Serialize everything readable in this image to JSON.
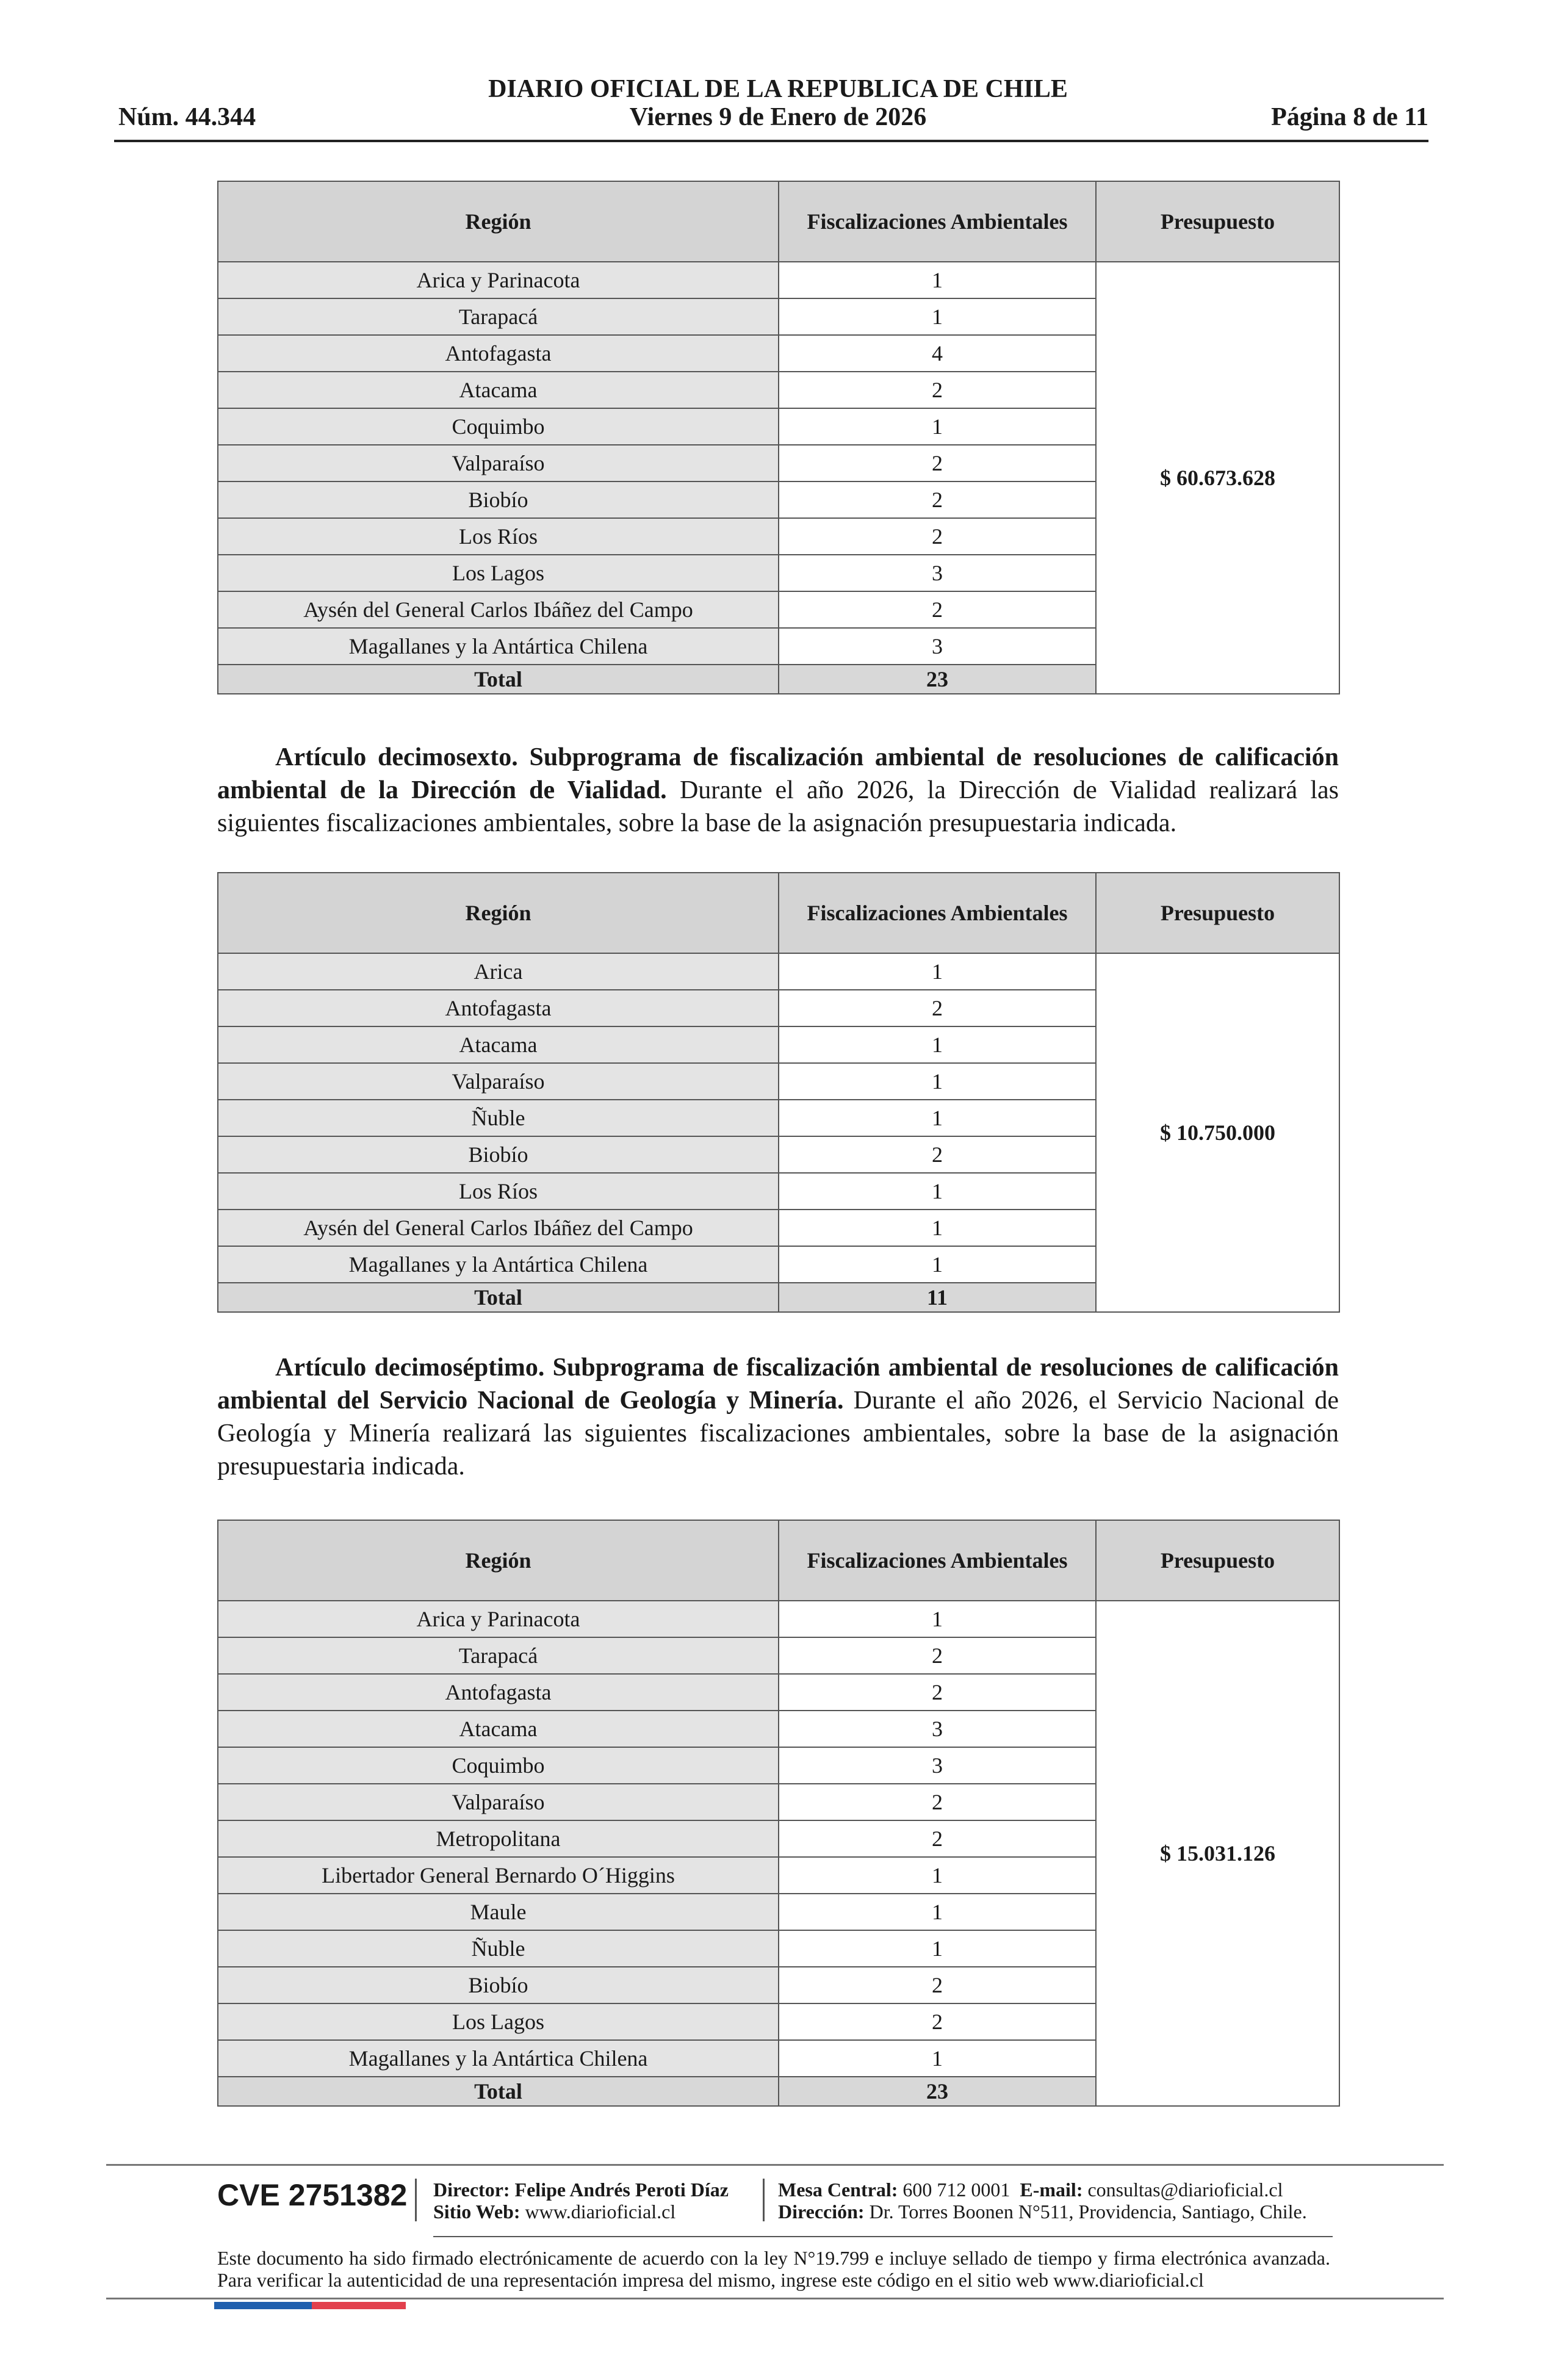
{
  "header": {
    "title": "DIARIO OFICIAL DE LA REPUBLICA DE CHILE",
    "date": "Viernes 9 de Enero de 2026",
    "number": "Núm. 44.344",
    "page": "Página 8 de 11"
  },
  "tables": [
    {
      "columns": [
        "Región",
        "Fiscalizaciones Ambientales",
        "Presupuesto"
      ],
      "rows": [
        [
          "Arica y Parinacota",
          1
        ],
        [
          "Tarapacá",
          1
        ],
        [
          "Antofagasta",
          4
        ],
        [
          "Atacama",
          2
        ],
        [
          "Coquimbo",
          1
        ],
        [
          "Valparaíso",
          2
        ],
        [
          "Biobío",
          2
        ],
        [
          "Los Ríos",
          2
        ],
        [
          "Los Lagos",
          3
        ],
        [
          "Aysén del General Carlos Ibáñez del Campo",
          2
        ],
        [
          "Magallanes y la Antártica Chilena",
          3
        ]
      ],
      "total": [
        "Total",
        23
      ],
      "budget": "$ 60.673.628"
    },
    {
      "columns": [
        "Región",
        "Fiscalizaciones Ambientales",
        "Presupuesto"
      ],
      "rows": [
        [
          "Arica",
          1
        ],
        [
          "Antofagasta",
          2
        ],
        [
          "Atacama",
          1
        ],
        [
          "Valparaíso",
          1
        ],
        [
          "Ñuble",
          1
        ],
        [
          "Biobío",
          2
        ],
        [
          "Los Ríos",
          1
        ],
        [
          "Aysén del General Carlos Ibáñez del Campo",
          1
        ],
        [
          "Magallanes y la Antártica Chilena",
          1
        ]
      ],
      "total": [
        "Total",
        11
      ],
      "budget": "$ 10.750.000"
    },
    {
      "columns": [
        "Región",
        "Fiscalizaciones Ambientales",
        "Presupuesto"
      ],
      "rows": [
        [
          "Arica y Parinacota",
          1
        ],
        [
          "Tarapacá",
          2
        ],
        [
          "Antofagasta",
          2
        ],
        [
          "Atacama",
          3
        ],
        [
          "Coquimbo",
          3
        ],
        [
          "Valparaíso",
          2
        ],
        [
          "Metropolitana",
          2
        ],
        [
          "Libertador General Bernardo O´Higgins",
          1
        ],
        [
          "Maule",
          1
        ],
        [
          "Ñuble",
          1
        ],
        [
          "Biobío",
          2
        ],
        [
          "Los Lagos",
          2
        ],
        [
          "Magallanes y la Antártica Chilena",
          1
        ]
      ],
      "total": [
        "Total",
        23
      ],
      "budget": "$ 15.031.126"
    }
  ],
  "articles": [
    {
      "heading": "Artículo decimosexto. Subprograma de fiscalización ambiental de resoluciones de calificación ambiental de la Dirección de Vialidad.",
      "body": "Durante el año 2026, la Dirección de Vialidad realizará las siguientes fiscalizaciones ambientales, sobre la base de la asignación presupuestaria indicada."
    },
    {
      "heading": "Artículo decimoséptimo. Subprograma de fiscalización ambiental de resoluciones de calificación ambiental del Servicio Nacional de Geología y Minería.",
      "body": "Durante el año 2026, el Servicio Nacional de Geología y Minería realizará las siguientes fiscalizaciones ambientales, sobre la base de la asignación presupuestaria indicada."
    }
  ],
  "footer": {
    "cve": "CVE 2751382",
    "director_label": "Director:",
    "director": "Felipe Andrés Peroti Díaz",
    "web_label": "Sitio Web:",
    "web": "www.diarioficial.cl",
    "phone_label": "Mesa Central:",
    "phone": "600 712 0001",
    "email_label": "E-mail:",
    "email": "consultas@diarioficial.cl",
    "address_label": "Dirección:",
    "address": "Dr. Torres Boonen N°511, Providencia, Santiago, Chile.",
    "disclaimer": "Este documento ha sido firmado electrónicamente de acuerdo con la ley N°19.799 e incluye sellado de tiempo y firma electrónica avanzada. Para verificar la autenticidad de una representación impresa del mismo, ingrese este código en el sitio web www.diarioficial.cl"
  }
}
